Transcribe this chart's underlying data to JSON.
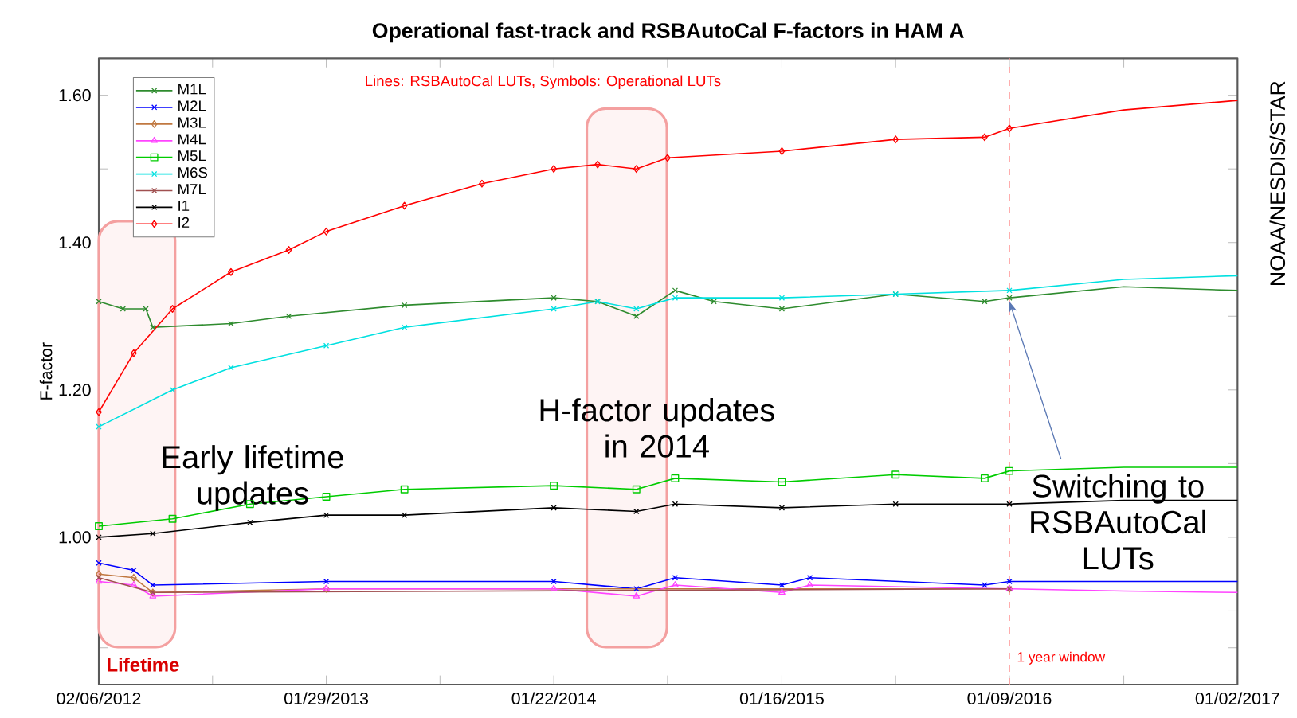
{
  "chart_data": {
    "type": "line",
    "title": "Operational fast-track and RSBAutoCal F-factors in HAM A",
    "ylabel": "F-factor",
    "xlim": [
      "2012-02-06",
      "2017-01-02"
    ],
    "xticks": [
      {
        "value": "2012-02-06",
        "label": "02/06/2012"
      },
      {
        "value": "2012-08-03",
        "label": null
      },
      {
        "value": "2013-01-29",
        "label": "01/29/2013"
      },
      {
        "value": "2013-07-27",
        "label": null
      },
      {
        "value": "2014-01-22",
        "label": "01/22/2014"
      },
      {
        "value": "2014-07-20",
        "label": null
      },
      {
        "value": "2015-01-16",
        "label": "01/16/2015"
      },
      {
        "value": "2015-07-14",
        "label": null
      },
      {
        "value": "2016-01-09",
        "label": "01/09/2016"
      },
      {
        "value": "2016-07-07",
        "label": null
      },
      {
        "value": "2017-01-02",
        "label": "01/02/2017"
      }
    ],
    "ylim": [
      0.8,
      1.65
    ],
    "yticks": [
      {
        "value": 0.85,
        "label": null
      },
      {
        "value": 0.9,
        "label": null
      },
      {
        "value": 1.0,
        "label": "1.00"
      },
      {
        "value": 1.1,
        "label": null
      },
      {
        "value": 1.2,
        "label": "1.20"
      },
      {
        "value": 1.3,
        "label": null
      },
      {
        "value": 1.4,
        "label": "1.40"
      },
      {
        "value": 1.5,
        "label": null
      },
      {
        "value": 1.6,
        "label": "1.60"
      }
    ],
    "legend": "top left",
    "grid": false,
    "line_style": "solid",
    "series": [
      {
        "name": "M1L",
        "color": "#2e8b2e",
        "marker": "cross",
        "x": [
          "2012-02-06",
          "2012-03-15",
          "2012-04-20",
          "2012-05-01",
          "2012-09-01",
          "2012-12-01",
          "2013-06-01",
          "2014-01-22",
          "2014-04-01",
          "2014-06-01",
          "2014-08-01",
          "2014-10-01",
          "2015-01-16",
          "2015-07-14",
          "2015-12-01",
          "2016-01-09"
        ],
        "values": [
          1.32,
          1.31,
          1.31,
          1.285,
          1.29,
          1.3,
          1.315,
          1.325,
          1.32,
          1.3,
          1.335,
          1.32,
          1.31,
          1.33,
          1.32,
          1.325
        ]
      },
      {
        "name": "M2L",
        "color": "#0000ff",
        "marker": "cross",
        "x": [
          "2012-02-06",
          "2012-04-01",
          "2012-05-01",
          "2013-01-29",
          "2014-01-22",
          "2014-06-01",
          "2014-08-01",
          "2015-01-16",
          "2015-03-01",
          "2015-12-01",
          "2016-01-09"
        ],
        "values": [
          0.965,
          0.955,
          0.935,
          0.94,
          0.94,
          0.93,
          0.945,
          0.935,
          0.945,
          0.935,
          0.94
        ]
      },
      {
        "name": "M3L",
        "color": "#c07840",
        "marker": "diamond",
        "x": [
          "2012-02-06",
          "2012-04-01",
          "2012-05-01",
          "2013-01-29",
          "2016-01-09"
        ],
        "values": [
          0.95,
          0.945,
          0.925,
          0.93,
          0.93
        ]
      },
      {
        "name": "M4L",
        "color": "#ff44ff",
        "marker": "triangle",
        "x": [
          "2012-02-06",
          "2012-04-01",
          "2012-05-01",
          "2013-01-29",
          "2014-01-22",
          "2014-06-01",
          "2014-08-01",
          "2015-01-16",
          "2015-03-01",
          "2016-01-09"
        ],
        "values": [
          0.94,
          0.935,
          0.92,
          0.93,
          0.93,
          0.92,
          0.935,
          0.925,
          0.935,
          0.93
        ]
      },
      {
        "name": "M5L",
        "color": "#00cc00",
        "marker": "square",
        "x": [
          "2012-02-06",
          "2012-06-01",
          "2012-10-01",
          "2013-01-29",
          "2013-06-01",
          "2014-01-22",
          "2014-06-01",
          "2014-08-01",
          "2015-01-16",
          "2015-07-14",
          "2015-12-01",
          "2016-01-09"
        ],
        "values": [
          1.015,
          1.025,
          1.045,
          1.055,
          1.065,
          1.07,
          1.065,
          1.08,
          1.075,
          1.085,
          1.08,
          1.09
        ]
      },
      {
        "name": "M6S",
        "color": "#00e0e0",
        "marker": "cross",
        "x": [
          "2012-02-06",
          "2012-06-01",
          "2012-09-01",
          "2013-01-29",
          "2013-06-01",
          "2014-01-22",
          "2014-04-01",
          "2014-06-01",
          "2014-08-01",
          "2015-01-16",
          "2015-07-14",
          "2016-01-09"
        ],
        "values": [
          1.15,
          1.2,
          1.23,
          1.26,
          1.285,
          1.31,
          1.32,
          1.31,
          1.325,
          1.325,
          1.33,
          1.335
        ]
      },
      {
        "name": "M7L",
        "color": "#a05050",
        "marker": "cross",
        "x": [
          "2012-02-06",
          "2012-05-01",
          "2016-01-09"
        ],
        "values": [
          0.945,
          0.925,
          0.93
        ]
      },
      {
        "name": "I1",
        "color": "#000000",
        "marker": "cross",
        "x": [
          "2012-02-06",
          "2012-05-01",
          "2012-10-01",
          "2013-01-29",
          "2013-06-01",
          "2014-01-22",
          "2014-06-01",
          "2014-08-01",
          "2015-01-16",
          "2015-07-14",
          "2016-01-09"
        ],
        "values": [
          1.0,
          1.005,
          1.02,
          1.03,
          1.03,
          1.04,
          1.035,
          1.045,
          1.04,
          1.045,
          1.045
        ]
      },
      {
        "name": "I2",
        "color": "#ff0000",
        "marker": "diamond",
        "x": [
          "2012-02-06",
          "2012-04-01",
          "2012-06-01",
          "2012-09-01",
          "2012-12-01",
          "2013-01-29",
          "2013-06-01",
          "2013-10-01",
          "2014-01-22",
          "2014-04-01",
          "2014-06-01",
          "2014-07-20",
          "2015-01-16",
          "2015-07-14",
          "2015-12-01",
          "2016-01-09"
        ],
        "values": [
          1.17,
          1.25,
          1.31,
          1.36,
          1.39,
          1.415,
          1.45,
          1.48,
          1.5,
          1.506,
          1.5,
          1.515,
          1.524,
          1.54,
          1.543,
          1.555
        ]
      },
      {
        "color": "#2e8b2e",
        "marker": "none",
        "x": [
          "2016-01-09",
          "2016-07-07",
          "2017-01-02"
        ],
        "values": [
          1.325,
          1.34,
          1.335
        ]
      },
      {
        "color": "#0000ff",
        "marker": "none",
        "x": [
          "2016-01-09",
          "2016-07-07",
          "2017-01-02"
        ],
        "values": [
          0.94,
          0.94,
          0.94
        ]
      },
      {
        "color": "#ff44ff",
        "marker": "none",
        "x": [
          "2016-01-09",
          "2016-07-07",
          "2017-01-02"
        ],
        "values": [
          0.93,
          0.927,
          0.925
        ]
      },
      {
        "color": "#00cc00",
        "marker": "none",
        "x": [
          "2016-01-09",
          "2016-07-07",
          "2017-01-02"
        ],
        "values": [
          1.09,
          1.095,
          1.095
        ]
      },
      {
        "color": "#00e0e0",
        "marker": "none",
        "x": [
          "2016-01-09",
          "2016-07-07",
          "2017-01-02"
        ],
        "values": [
          1.335,
          1.35,
          1.355
        ]
      },
      {
        "color": "#000000",
        "marker": "none",
        "x": [
          "2016-01-09",
          "2016-07-07",
          "2017-01-02"
        ],
        "values": [
          1.045,
          1.05,
          1.05
        ]
      },
      {
        "color": "#ff0000",
        "marker": "none",
        "x": [
          "2016-01-09",
          "2016-07-07",
          "2017-01-02"
        ],
        "values": [
          1.555,
          1.58,
          1.593
        ]
      }
    ],
    "ref_lines": [
      {
        "axis": "x",
        "value": "2016-01-09",
        "label": "1 year window",
        "color": "#ff9999",
        "line_style": "dashed"
      }
    ],
    "bands": [
      {
        "axis": "x",
        "from": "2012-02-06",
        "to": "2012-06-05",
        "label": "Lifetime",
        "color": "#f4a0a0"
      },
      {
        "axis": "x",
        "from": "2014-03-15",
        "to": "2014-07-19",
        "color": "#f4a0a0"
      }
    ],
    "annotations": [
      "Lines: RSBAutoCal LUTs, Symbols: Operational LUTs",
      "NOAA/NESDIS/STAR",
      "Early lifetime updates",
      "H-factor updates in 2014",
      {
        "text": "Switching to RSBAutoCal LUTs",
        "x": "2016-01-09",
        "y": 1.33
      }
    ]
  }
}
